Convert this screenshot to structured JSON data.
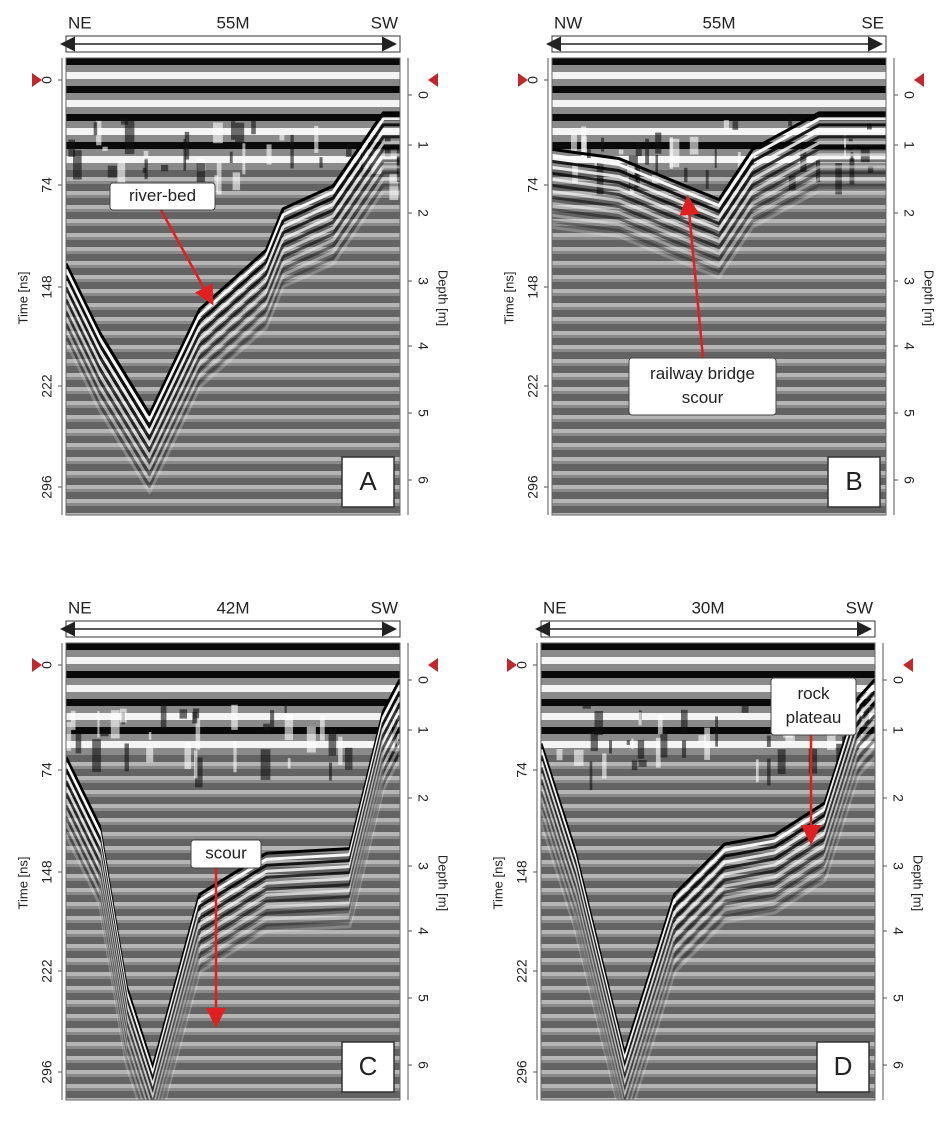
{
  "panels": [
    {
      "left": "NE",
      "distance": "55M",
      "right": "SW",
      "time_label": "Time [ns]",
      "time_ticks": [
        0,
        74,
        148,
        222,
        296
      ],
      "depth_label": "Depth [m]",
      "depth_ticks": [
        0,
        1,
        2,
        3,
        4,
        5,
        6
      ],
      "annotation": [
        "river-bed"
      ],
      "letter": "A"
    },
    {
      "left": "NW",
      "distance": "55M",
      "right": "SE",
      "time_label": "Time [ns]",
      "time_ticks": [
        0,
        74,
        148,
        222,
        296
      ],
      "depth_label": "Depth [m]",
      "depth_ticks": [
        0,
        1,
        2,
        3,
        4,
        5,
        6
      ],
      "annotation": [
        "railway bridge",
        "scour"
      ],
      "letter": "B"
    },
    {
      "left": "NE",
      "distance": "42M",
      "right": "SW",
      "time_label": "Time [ns]",
      "time_ticks": [
        0,
        74,
        148,
        222,
        296
      ],
      "depth_label": "Depth [m]",
      "depth_ticks": [
        0,
        1,
        2,
        3,
        4,
        5,
        6
      ],
      "annotation": [
        "scour"
      ],
      "letter": "C"
    },
    {
      "left": "NE",
      "distance": "30M",
      "right": "SW",
      "time_label": "Time [ns]",
      "time_ticks": [
        0,
        74,
        148,
        222,
        296
      ],
      "depth_label": "Depth [m]",
      "depth_ticks": [
        0,
        1,
        2,
        3,
        4,
        5,
        6
      ],
      "annotation": [
        "rock",
        "plateau"
      ],
      "letter": "D"
    }
  ]
}
